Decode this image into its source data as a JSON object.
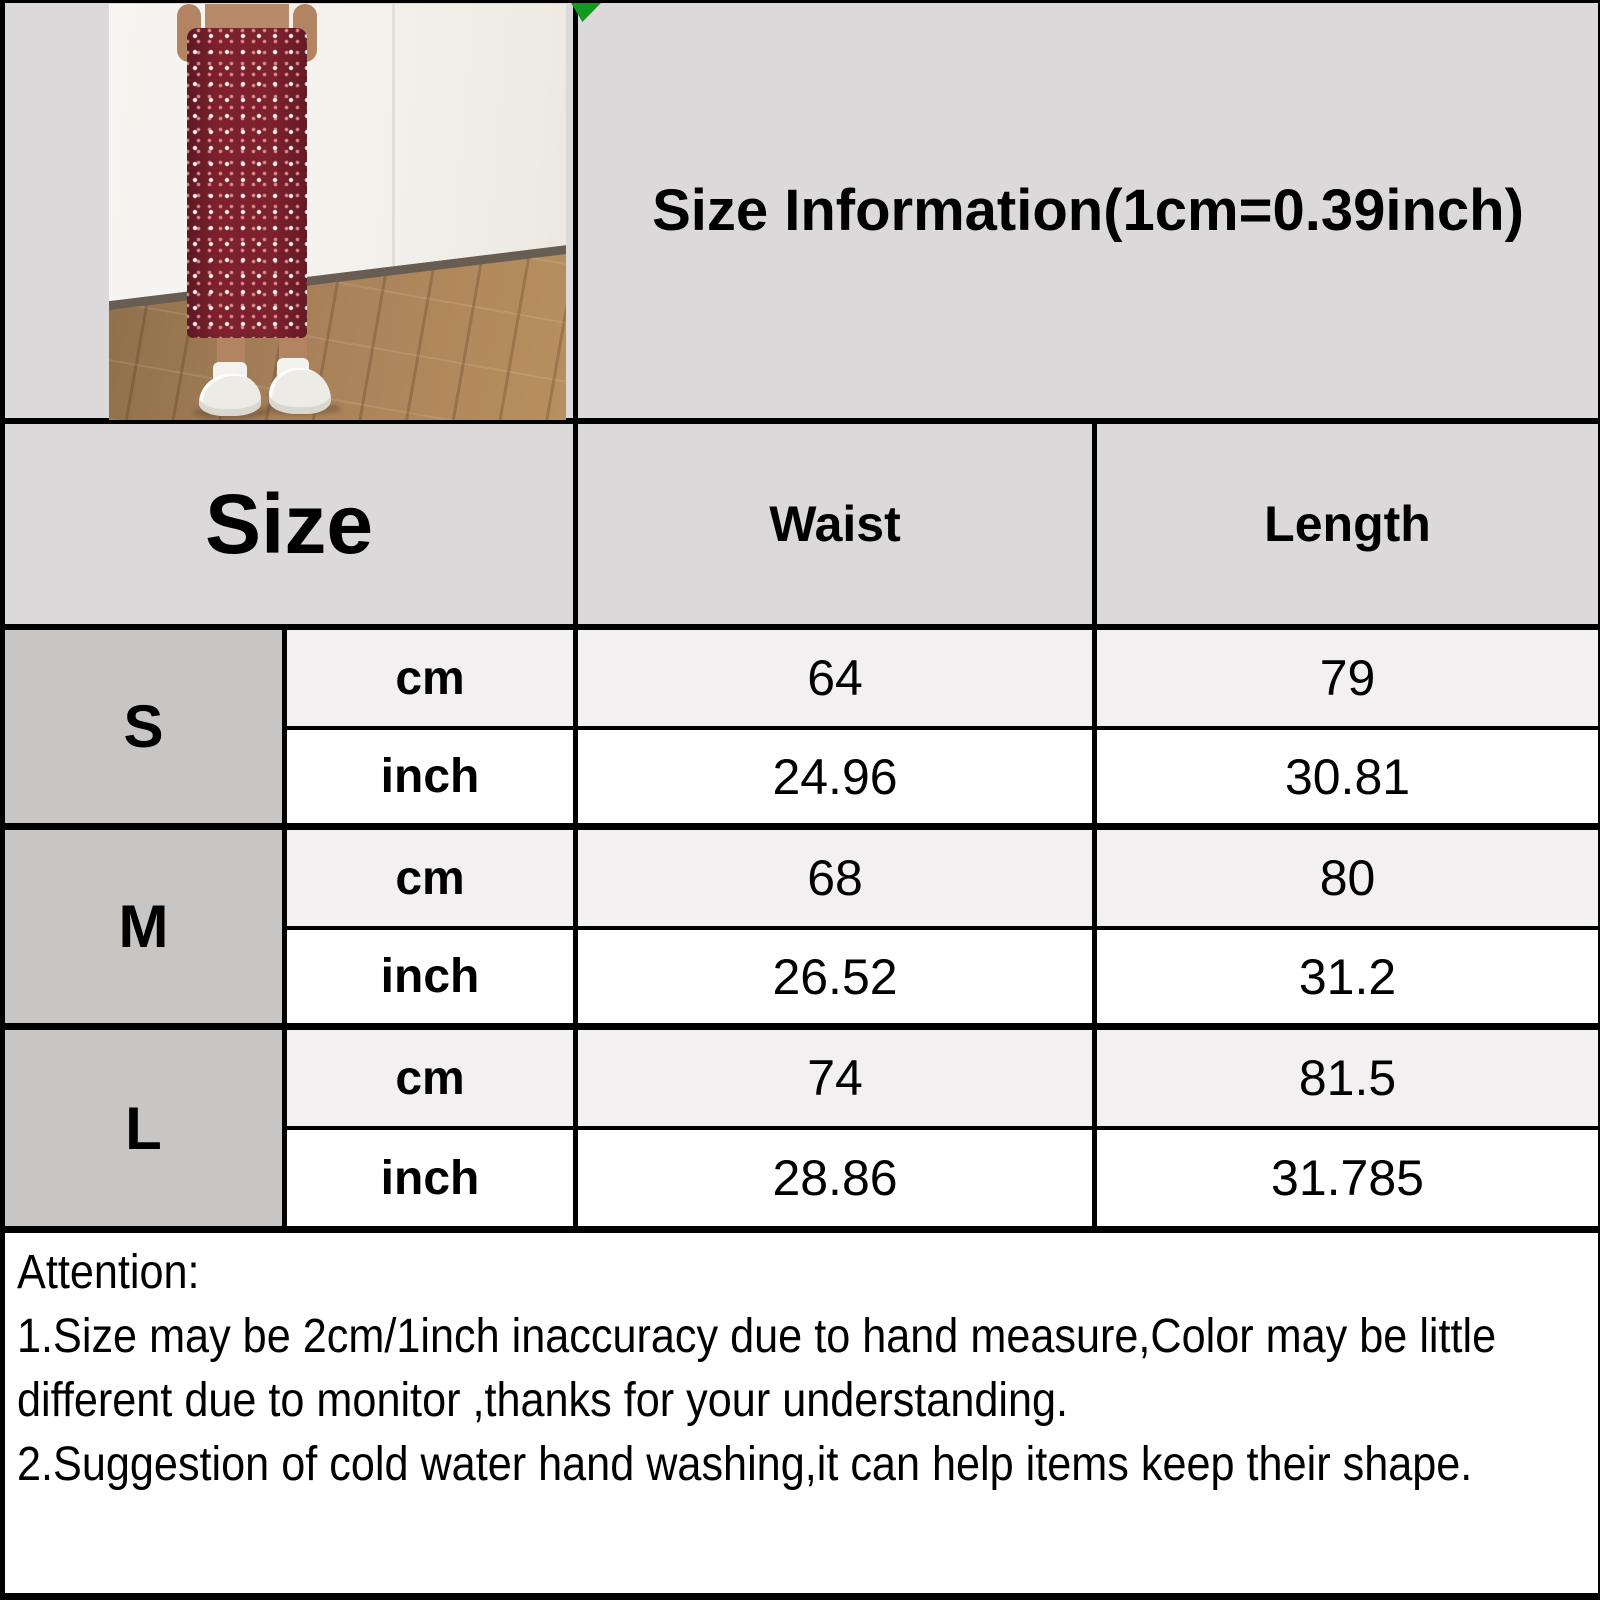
{
  "header": {
    "title": "Size Information(1cm=0.39inch)"
  },
  "photo": {
    "description": "Model wearing red floral print split-hem midi skirt with white sneakers"
  },
  "size_table": {
    "size_col_header": "Size",
    "columns": [
      "Waist",
      "Length"
    ],
    "rows": [
      {
        "size": "S",
        "cm": {
          "label": "cm",
          "waist": "64",
          "length": "79"
        },
        "inch": {
          "label": "inch",
          "waist": "24.96",
          "length": "30.81"
        }
      },
      {
        "size": "M",
        "cm": {
          "label": "cm",
          "waist": "68",
          "length": "80"
        },
        "inch": {
          "label": "inch",
          "waist": "26.52",
          "length": "31.2"
        }
      },
      {
        "size": "L",
        "cm": {
          "label": "cm",
          "waist": "74",
          "length": "81.5"
        },
        "inch": {
          "label": "inch",
          "waist": "28.86",
          "length": "31.785"
        }
      }
    ]
  },
  "attention": {
    "heading": "Attention:",
    "lines": [
      "1.Size may be 2cm/1inch inaccuracy due to hand measure,Color may be little",
      "different due to monitor ,thanks for your understanding.",
      "2.Suggestion of cold water hand washing,it can help items keep their shape."
    ]
  },
  "colors": {
    "table_line": "#000000",
    "header_bg": "#dbd9d9",
    "size_label_bg": "#c8c5c5",
    "cm_row_bg": "#f2f0f0",
    "inch_row_bg": "#ffffff",
    "corner_marker_green": "#139a1d",
    "skirt_red": "#7c212e"
  }
}
